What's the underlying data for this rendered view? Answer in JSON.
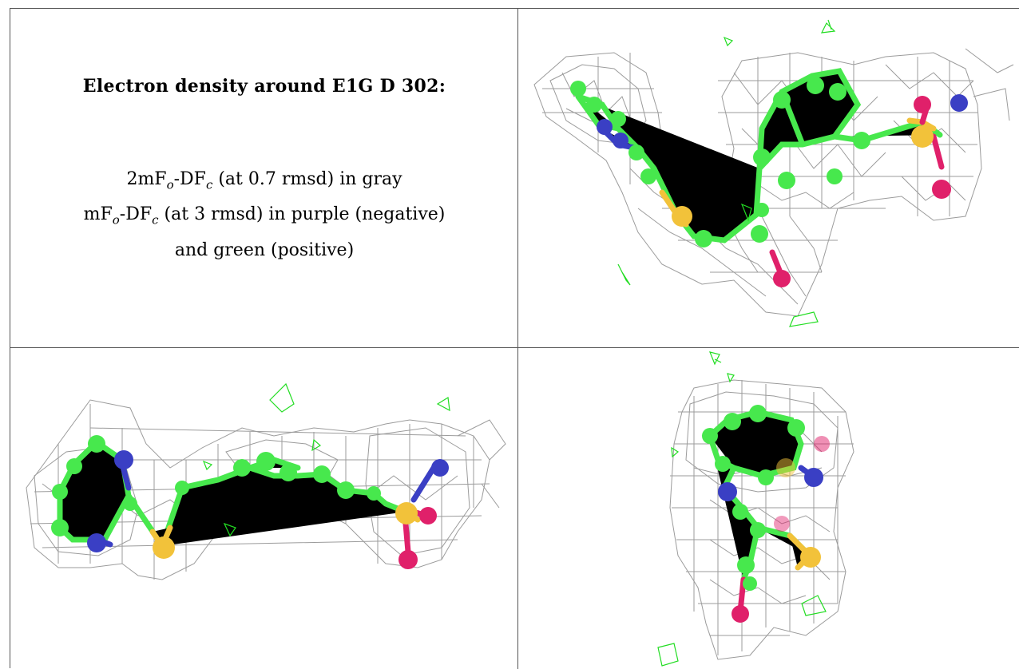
{
  "panel_text": {
    "title": "Electron density around E1G D 302:",
    "line1_pre": "2mF",
    "line1_sub1": "o",
    "line1_mid": "-DF",
    "line1_sub2": "c",
    "line1_post": " (at 0.7 rmsd) in gray",
    "line2_pre": "mF",
    "line2_sub1": "o",
    "line2_mid": "-DF",
    "line2_sub2": "c",
    "line2_post": " (at 3 rmsd) in purple (negative)",
    "line3": "and green (positive)"
  },
  "colors": {
    "carbon": "#47e84d",
    "nitrogen": "#3a3fc4",
    "oxygen": "#e0206a",
    "sulfur": "#f2c23a",
    "mesh": "#8a8a8a",
    "positive_density": "#22dd22"
  }
}
